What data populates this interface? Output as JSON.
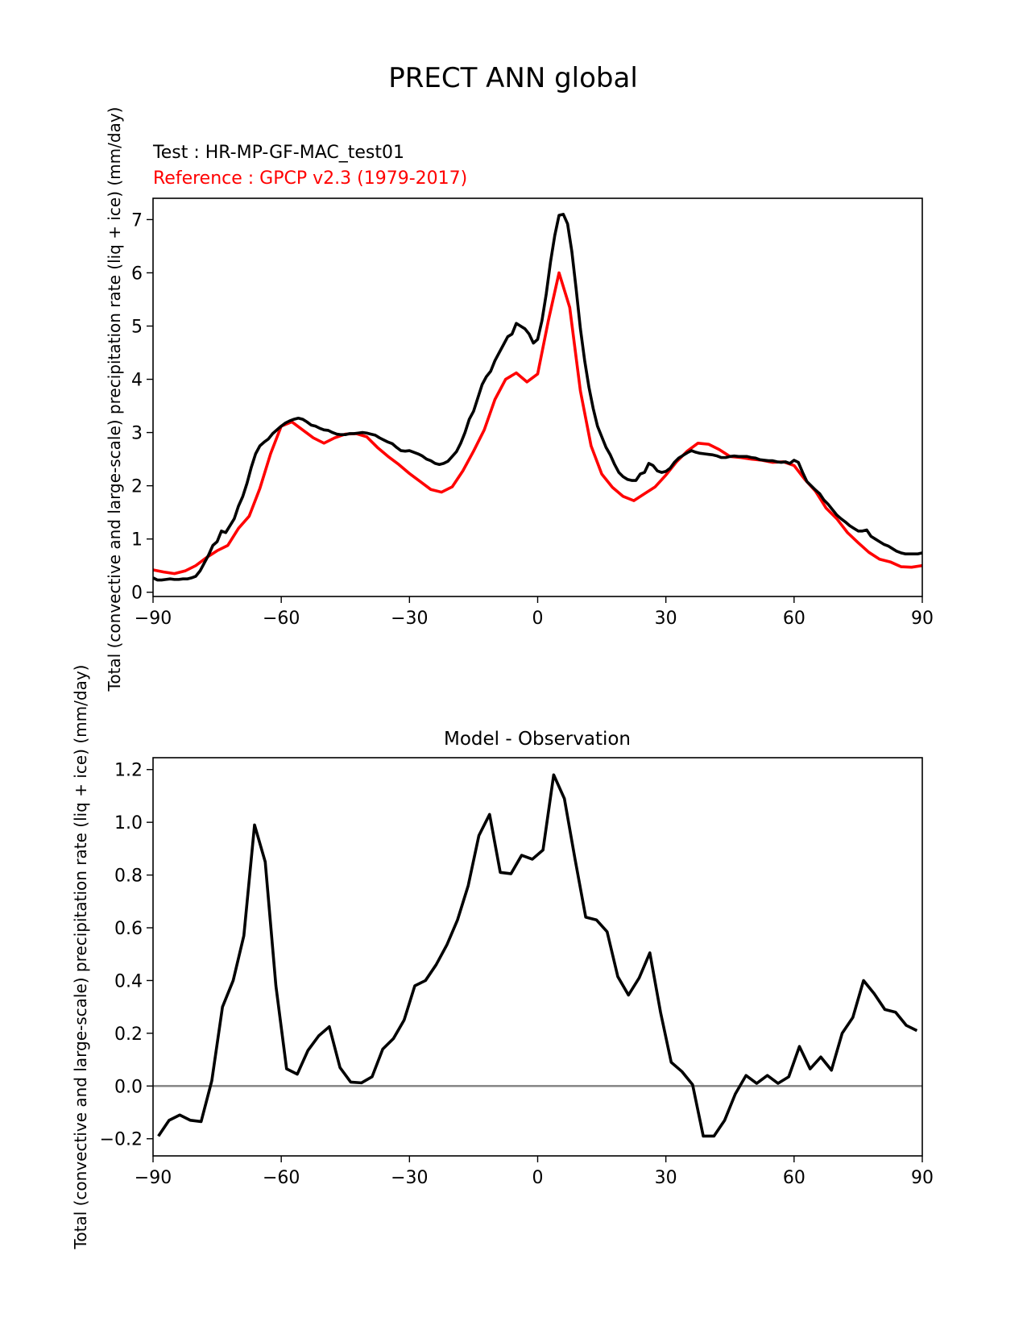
{
  "figure_title": "PRECT ANN global",
  "colors": {
    "test": "#000000",
    "reference": "#ff0000",
    "zero_line": "#808080",
    "axes": "#000000"
  },
  "chart_data": [
    {
      "type": "line",
      "title": "",
      "test_label": "Test : HR-MP-GF-MAC_test01",
      "reference_label": "Reference : GPCP v2.3 (1979-2017)",
      "xlabel": "",
      "ylabel": "Total (convective and large-scale) precipitation rate (liq + ice) (mm/day)",
      "xlim": [
        -90,
        90
      ],
      "ylim": [
        -0.08,
        7.4
      ],
      "xticks": [
        -90,
        -60,
        -30,
        0,
        30,
        60,
        90
      ],
      "xtick_labels": [
        "−90",
        "−60",
        "−30",
        "0",
        "30",
        "60",
        "90"
      ],
      "yticks": [
        0,
        1,
        2,
        3,
        4,
        5,
        6,
        7
      ],
      "ytick_labels": [
        "0",
        "1",
        "2",
        "3",
        "4",
        "5",
        "6",
        "7"
      ],
      "series": [
        {
          "name": "Test : HR-MP-GF-MAC_test01",
          "color_key": "test",
          "x": [
            -90,
            -89,
            -88,
            -87,
            -86,
            -85,
            -84,
            -83,
            -82,
            -81,
            -80,
            -79,
            -78,
            -77,
            -76,
            -75,
            -74,
            -73,
            -72,
            -71,
            -70,
            -69,
            -68,
            -67,
            -66,
            -65,
            -64,
            -63,
            -62,
            -61,
            -60,
            -59,
            -58,
            -57,
            -56,
            -55,
            -54,
            -53,
            -52,
            -51,
            -50,
            -49,
            -48,
            -47,
            -46,
            -45,
            -44,
            -43,
            -42,
            -41,
            -40,
            -39,
            -38,
            -37,
            -36,
            -35,
            -34,
            -33,
            -32,
            -31,
            -30,
            -29,
            -28,
            -27,
            -26,
            -25,
            -24,
            -23,
            -22,
            -21,
            -20,
            -19,
            -18,
            -17,
            -16,
            -15,
            -14,
            -13,
            -12,
            -11,
            -10,
            -9,
            -8,
            -7,
            -6,
            -5,
            -4,
            -3,
            -2,
            -1,
            0,
            1,
            2,
            3,
            4,
            5,
            6,
            7,
            8,
            9,
            10,
            11,
            12,
            13,
            14,
            15,
            16,
            17,
            18,
            19,
            20,
            21,
            22,
            23,
            24,
            25,
            26,
            27,
            28,
            29,
            30,
            31,
            32,
            33,
            34,
            35,
            36,
            37,
            38,
            39,
            40,
            41,
            42,
            43,
            44,
            45,
            46,
            47,
            48,
            49,
            50,
            51,
            52,
            53,
            54,
            55,
            56,
            57,
            58,
            59,
            60,
            61,
            62,
            63,
            64,
            65,
            66,
            67,
            68,
            69,
            70,
            71,
            72,
            73,
            74,
            75,
            76,
            77,
            78,
            79,
            80,
            81,
            82,
            83,
            84,
            85,
            86,
            87,
            88,
            89,
            90
          ],
          "y": [
            0.27,
            0.23,
            0.23,
            0.24,
            0.25,
            0.24,
            0.24,
            0.25,
            0.25,
            0.27,
            0.3,
            0.4,
            0.55,
            0.7,
            0.88,
            0.95,
            1.15,
            1.12,
            1.25,
            1.38,
            1.62,
            1.8,
            2.05,
            2.35,
            2.6,
            2.75,
            2.82,
            2.88,
            2.98,
            3.05,
            3.12,
            3.18,
            3.22,
            3.25,
            3.27,
            3.25,
            3.2,
            3.14,
            3.12,
            3.08,
            3.05,
            3.04,
            3.0,
            2.97,
            2.96,
            2.96,
            2.98,
            2.98,
            2.99,
            3.0,
            2.99,
            2.97,
            2.95,
            2.9,
            2.86,
            2.82,
            2.79,
            2.72,
            2.66,
            2.65,
            2.66,
            2.63,
            2.6,
            2.56,
            2.5,
            2.47,
            2.42,
            2.4,
            2.42,
            2.46,
            2.55,
            2.64,
            2.8,
            3.0,
            3.25,
            3.4,
            3.65,
            3.9,
            4.05,
            4.15,
            4.35,
            4.5,
            4.65,
            4.8,
            4.85,
            5.05,
            5.0,
            4.95,
            4.85,
            4.68,
            4.75,
            5.1,
            5.6,
            6.2,
            6.7,
            7.08,
            7.1,
            6.92,
            6.4,
            5.7,
            4.95,
            4.35,
            3.85,
            3.45,
            3.12,
            2.92,
            2.72,
            2.58,
            2.4,
            2.25,
            2.17,
            2.12,
            2.1,
            2.1,
            2.22,
            2.25,
            2.42,
            2.38,
            2.28,
            2.25,
            2.27,
            2.33,
            2.44,
            2.52,
            2.57,
            2.62,
            2.66,
            2.63,
            2.61,
            2.6,
            2.59,
            2.58,
            2.56,
            2.53,
            2.53,
            2.55,
            2.56,
            2.55,
            2.55,
            2.55,
            2.53,
            2.52,
            2.49,
            2.48,
            2.47,
            2.47,
            2.45,
            2.44,
            2.45,
            2.42,
            2.48,
            2.44,
            2.25,
            2.08,
            2.0,
            1.92,
            1.85,
            1.73,
            1.65,
            1.55,
            1.45,
            1.38,
            1.32,
            1.25,
            1.2,
            1.15,
            1.15,
            1.17,
            1.05,
            1.0,
            0.95,
            0.9,
            0.87,
            0.82,
            0.77,
            0.74,
            0.72,
            0.72,
            0.72,
            0.72,
            0.74
          ]
        },
        {
          "name": "Reference : GPCP v2.3 (1979-2017)",
          "color_key": "reference",
          "x": [
            -90,
            -87.5,
            -85,
            -82.5,
            -80,
            -77.5,
            -75,
            -72.5,
            -70,
            -67.5,
            -65,
            -62.5,
            -60,
            -57.5,
            -55,
            -52.5,
            -50,
            -47.5,
            -45,
            -42.5,
            -40,
            -37.5,
            -35,
            -32.5,
            -30,
            -27.5,
            -25,
            -22.5,
            -20,
            -17.5,
            -15,
            -12.5,
            -10,
            -7.5,
            -5,
            -2.5,
            0,
            2.5,
            5,
            7.5,
            10,
            12.5,
            15,
            17.5,
            20,
            22.5,
            25,
            27.5,
            30,
            32.5,
            35,
            37.5,
            40,
            42.5,
            45,
            47.5,
            50,
            52.5,
            55,
            57.5,
            60,
            62.5,
            65,
            67.5,
            70,
            72.5,
            75,
            77.5,
            80,
            82.5,
            85,
            87.5,
            90
          ],
          "y": [
            0.42,
            0.38,
            0.35,
            0.4,
            0.5,
            0.65,
            0.78,
            0.88,
            1.2,
            1.43,
            1.95,
            2.6,
            3.12,
            3.2,
            3.05,
            2.9,
            2.8,
            2.9,
            2.97,
            2.98,
            2.92,
            2.72,
            2.55,
            2.4,
            2.23,
            2.08,
            1.93,
            1.88,
            1.98,
            2.28,
            2.65,
            3.05,
            3.62,
            4.0,
            4.12,
            3.95,
            4.1,
            5.1,
            6.0,
            5.35,
            3.78,
            2.75,
            2.22,
            1.97,
            1.8,
            1.72,
            1.85,
            1.98,
            2.2,
            2.45,
            2.65,
            2.8,
            2.78,
            2.68,
            2.55,
            2.53,
            2.5,
            2.48,
            2.44,
            2.45,
            2.38,
            2.12,
            1.9,
            1.58,
            1.38,
            1.12,
            0.93,
            0.75,
            0.62,
            0.57,
            0.48,
            0.47,
            0.5
          ]
        }
      ]
    },
    {
      "type": "line",
      "title": "Model - Observation",
      "xlabel": "",
      "ylabel": "Total (convective and large-scale) precipitation rate (liq + ice) (mm/day)",
      "xlim": [
        -90,
        90
      ],
      "ylim": [
        -0.265,
        1.245
      ],
      "xticks": [
        -90,
        -60,
        -30,
        0,
        30,
        60,
        90
      ],
      "xtick_labels": [
        "−90",
        "−60",
        "−30",
        "0",
        "30",
        "60",
        "90"
      ],
      "yticks": [
        -0.2,
        0.0,
        0.2,
        0.4,
        0.6,
        0.8,
        1.0,
        1.2
      ],
      "ytick_labels": [
        "−0.2",
        "0.0",
        "0.2",
        "0.4",
        "0.6",
        "0.8",
        "1.0",
        "1.2"
      ],
      "zero_line": 0.0,
      "series": [
        {
          "name": "Model - Observation",
          "color_key": "test",
          "x": [
            -88.75,
            -86.25,
            -83.75,
            -81.25,
            -78.75,
            -76.25,
            -73.75,
            -71.25,
            -68.75,
            -66.25,
            -63.75,
            -61.25,
            -58.75,
            -56.25,
            -53.75,
            -51.25,
            -48.75,
            -46.25,
            -43.75,
            -41.25,
            -38.75,
            -36.25,
            -33.75,
            -31.25,
            -28.75,
            -26.25,
            -23.75,
            -21.25,
            -18.75,
            -16.25,
            -13.75,
            -11.25,
            -8.75,
            -6.25,
            -3.75,
            -1.25,
            1.25,
            3.75,
            6.25,
            8.75,
            11.25,
            13.75,
            16.25,
            18.75,
            21.25,
            23.75,
            26.25,
            28.75,
            31.25,
            33.75,
            36.25,
            38.75,
            41.25,
            43.75,
            46.25,
            48.75,
            51.25,
            53.75,
            56.25,
            58.75,
            61.25,
            63.75,
            66.25,
            68.75,
            71.25,
            73.75,
            76.25,
            78.75,
            81.25,
            83.75,
            86.25,
            88.75
          ],
          "y": [
            -0.19,
            -0.13,
            -0.11,
            -0.13,
            -0.135,
            0.02,
            0.3,
            0.4,
            0.57,
            0.99,
            0.85,
            0.38,
            0.065,
            0.045,
            0.135,
            0.19,
            0.225,
            0.07,
            0.015,
            0.012,
            0.035,
            0.14,
            0.18,
            0.25,
            0.38,
            0.4,
            0.46,
            0.535,
            0.63,
            0.76,
            0.95,
            1.03,
            0.81,
            0.805,
            0.875,
            0.86,
            0.895,
            1.18,
            1.09,
            0.86,
            0.64,
            0.63,
            0.585,
            0.415,
            0.345,
            0.41,
            0.505,
            0.28,
            0.09,
            0.055,
            0.005,
            -0.19,
            -0.19,
            -0.13,
            -0.03,
            0.04,
            0.01,
            0.04,
            0.01,
            0.035,
            0.15,
            0.065,
            0.11,
            0.06,
            0.2,
            0.26,
            0.4,
            0.35,
            0.29,
            0.28,
            0.23,
            0.21
          ]
        }
      ]
    }
  ]
}
